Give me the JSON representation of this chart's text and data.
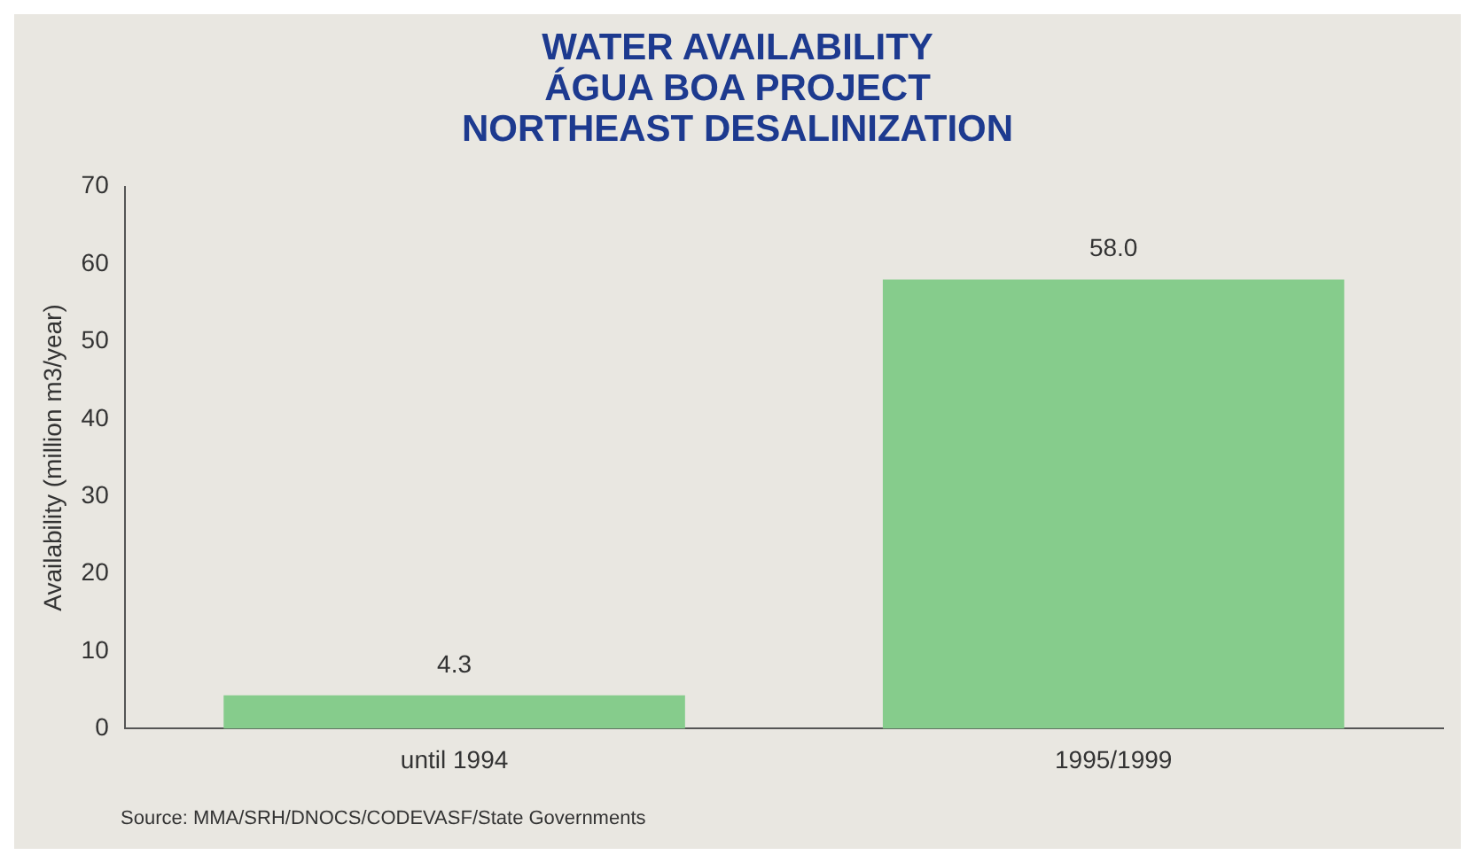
{
  "chart_data": {
    "type": "bar",
    "title": "WATER AVAILABILITY\nÁGUA BOA PROJECT\nNORTHEAST DESALINIZATION",
    "ylabel": "Availability (million m3/year)",
    "categories": [
      "until 1994",
      "1995/1999"
    ],
    "values": [
      4.3,
      58.0
    ],
    "value_labels": [
      "4.3",
      "58.0"
    ],
    "color": "#86cc8c",
    "ylim": [
      0,
      70
    ],
    "yticks": [
      0,
      10,
      20,
      30,
      40,
      50,
      60,
      70
    ],
    "grid": false,
    "legend": false,
    "annotations": [
      "Source: MMA/SRH/DNOCS/CODEVASF/State Governments"
    ]
  }
}
